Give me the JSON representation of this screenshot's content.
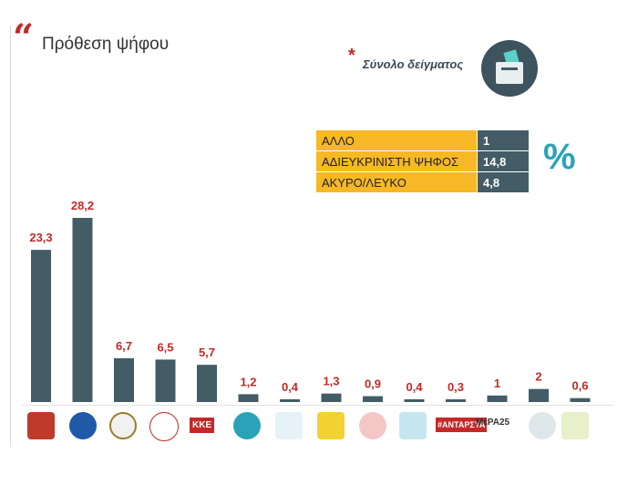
{
  "header": {
    "title": "Πρόθεση ψήφου",
    "sample_label": "Σύνολο δείγματος",
    "star": "*"
  },
  "other": {
    "rows": [
      {
        "label": "ΑΛΛΟ",
        "value": "1"
      },
      {
        "label": "ΑΔΙΕΥΚΡΙΝΙΣΤΗ ΨΗΦΟΣ",
        "value": "14,8"
      },
      {
        "label": "ΑΚΥΡΟ/ΛΕΥΚΟ",
        "value": "4,8"
      }
    ],
    "unit": "%"
  },
  "logos": {
    "kke": "ΚΚΕ",
    "antarsya": "#ΑΝΤΑΡΣΥΑ",
    "mera25": "ΜέΡΑ25"
  },
  "chart_data": {
    "type": "bar",
    "values": [
      23.3,
      28.2,
      6.7,
      6.5,
      5.7,
      1.2,
      0.4,
      1.3,
      0.9,
      0.4,
      0.3,
      1,
      2,
      0.6
    ],
    "labels": [
      "23,3",
      "28,2",
      "6,7",
      "6,5",
      "5,7",
      "1,2",
      "0,4",
      "1,3",
      "0,9",
      "0,4",
      "0,3",
      "1",
      "2",
      "0,6"
    ],
    "ylim": [
      0,
      28.2
    ],
    "grid": false,
    "colors": {
      "bar": "#435c66",
      "label": "#c62828"
    }
  }
}
